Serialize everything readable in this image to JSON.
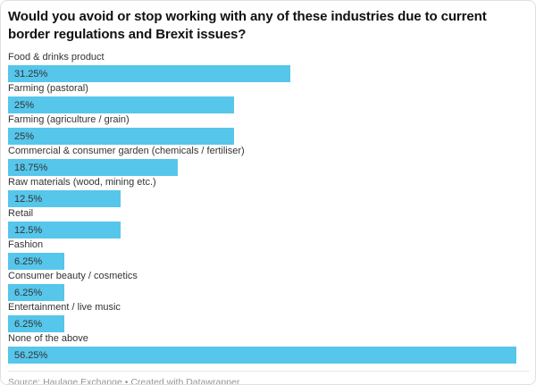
{
  "chart_data": {
    "type": "bar",
    "orientation": "horizontal",
    "title": "Would you avoid or stop working with any of these industries due to current border regulations and Brexit issues?",
    "categories": [
      "Food & drinks product",
      "Farming (pastoral)",
      "Farming (agriculture / grain)",
      "Commercial & consumer garden (chemicals / fertiliser)",
      "Raw materials (wood, mining etc.)",
      "Retail",
      "Fashion",
      "Consumer beauty / cosmetics",
      "Entertainment / live music",
      "None of the above"
    ],
    "values": [
      31.25,
      25,
      25,
      18.75,
      12.5,
      12.5,
      6.25,
      6.25,
      6.25,
      56.25
    ],
    "value_labels": [
      "31.25%",
      "25%",
      "25%",
      "18.75%",
      "12.5%",
      "12.5%",
      "6.25%",
      "6.25%",
      "6.25%",
      "56.25%"
    ],
    "xlabel": "",
    "ylabel": "",
    "xlim": [
      0,
      57.8
    ],
    "grid": false,
    "legend": false,
    "value_axis_visible": false,
    "bar_color": "#56c6eb",
    "label_color": "#333333"
  },
  "footer": {
    "text": "Source: Haulage Exchange • Created with Datawrapper"
  }
}
